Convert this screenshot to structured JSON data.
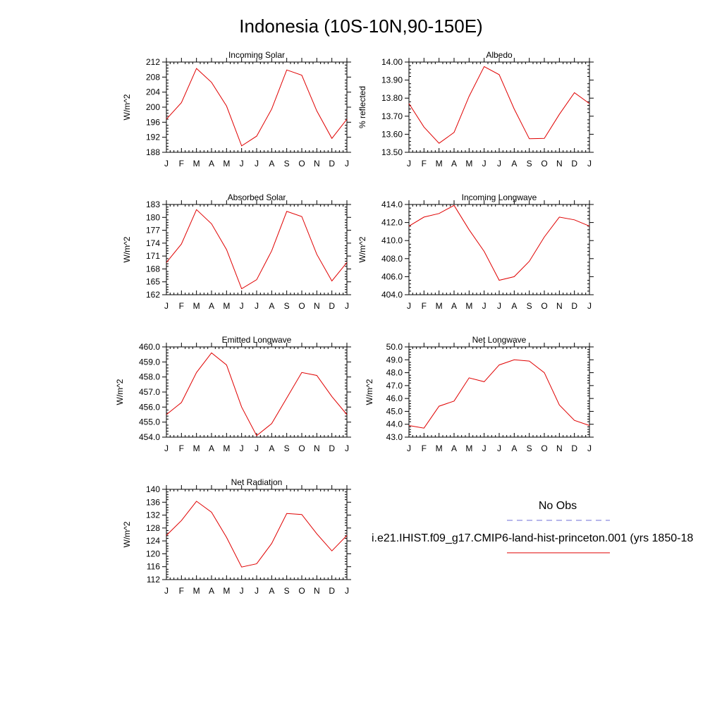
{
  "page_title": "Indonesia (10S-10N,90-150E)",
  "legend": {
    "obs_label": "No Obs",
    "model_label": "i.e21.IHIST.f09_g17.CMIP6-land-hist-princeton.001 (yrs 1850-18",
    "obs_color": "#6f6fd8",
    "model_color": "#e00000"
  },
  "chart_data": [
    {
      "type": "line",
      "title": "Incoming Solar",
      "ylabel": "W/m^2",
      "categories": [
        "J",
        "F",
        "M",
        "A",
        "M",
        "J",
        "J",
        "A",
        "S",
        "O",
        "N",
        "D",
        "J"
      ],
      "ylim": [
        188,
        212
      ],
      "yticks": [
        "188",
        "192",
        "196",
        "200",
        "204",
        "208",
        "212"
      ],
      "series": [
        {
          "color": "#e00000",
          "values": [
            196.8,
            201.2,
            210.3,
            206.6,
            200.3,
            189.7,
            192.3,
            199.5,
            209.9,
            208.5,
            199.0,
            191.7,
            196.8
          ]
        }
      ]
    },
    {
      "type": "line",
      "title": "Albedo",
      "ylabel": "% reflected",
      "categories": [
        "J",
        "F",
        "M",
        "A",
        "M",
        "J",
        "J",
        "A",
        "S",
        "O",
        "N",
        "D",
        "J"
      ],
      "ylim": [
        13.5,
        14.0
      ],
      "yticks": [
        "13.50",
        "13.60",
        "13.70",
        "13.80",
        "13.90",
        "14.00"
      ],
      "series": [
        {
          "color": "#e00000",
          "values": [
            13.77,
            13.64,
            13.55,
            13.61,
            13.81,
            13.975,
            13.93,
            13.74,
            13.575,
            13.577,
            13.71,
            13.83,
            13.77
          ]
        }
      ]
    },
    {
      "type": "line",
      "title": "Absorbed Solar",
      "ylabel": "W/m^2",
      "categories": [
        "J",
        "F",
        "M",
        "A",
        "M",
        "J",
        "J",
        "A",
        "S",
        "O",
        "N",
        "D",
        "J"
      ],
      "ylim": [
        162,
        183
      ],
      "yticks": [
        "162",
        "165",
        "168",
        "171",
        "174",
        "177",
        "180",
        "183"
      ],
      "series": [
        {
          "color": "#e00000",
          "values": [
            169.5,
            173.8,
            181.8,
            178.5,
            172.5,
            163.4,
            165.5,
            172.2,
            181.4,
            180.2,
            171.4,
            165.2,
            169.5
          ]
        }
      ]
    },
    {
      "type": "line",
      "title": "Incoming Longwave",
      "ylabel": "W/m^2",
      "categories": [
        "J",
        "F",
        "M",
        "A",
        "M",
        "J",
        "J",
        "A",
        "S",
        "O",
        "N",
        "D",
        "J"
      ],
      "ylim": [
        404.0,
        414.0
      ],
      "yticks": [
        "404.0",
        "406.0",
        "408.0",
        "410.0",
        "412.0",
        "414.0"
      ],
      "series": [
        {
          "color": "#e00000",
          "values": [
            411.6,
            412.6,
            413.0,
            413.9,
            411.2,
            408.8,
            405.6,
            406.0,
            407.7,
            410.4,
            412.6,
            412.3,
            411.6
          ]
        }
      ]
    },
    {
      "type": "line",
      "title": "Emitted Longwave",
      "ylabel": "W/m^2",
      "categories": [
        "J",
        "F",
        "M",
        "A",
        "M",
        "J",
        "J",
        "A",
        "S",
        "O",
        "N",
        "D",
        "J"
      ],
      "ylim": [
        454.0,
        460.0
      ],
      "yticks": [
        "454.0",
        "455.0",
        "456.0",
        "457.0",
        "458.0",
        "459.0",
        "460.0"
      ],
      "series": [
        {
          "color": "#e00000",
          "values": [
            455.5,
            456.3,
            458.3,
            459.6,
            458.8,
            456.0,
            454.1,
            454.9,
            456.6,
            458.3,
            458.1,
            456.7,
            455.5
          ]
        }
      ]
    },
    {
      "type": "line",
      "title": "Net Longwave",
      "ylabel": "W/m^2",
      "categories": [
        "J",
        "F",
        "M",
        "A",
        "M",
        "J",
        "J",
        "A",
        "S",
        "O",
        "N",
        "D",
        "J"
      ],
      "ylim": [
        43.0,
        50.0
      ],
      "yticks": [
        "43.0",
        "44.0",
        "45.0",
        "46.0",
        "47.0",
        "48.0",
        "49.0",
        "50.0"
      ],
      "series": [
        {
          "color": "#e00000",
          "values": [
            43.9,
            43.7,
            45.4,
            45.8,
            47.6,
            47.3,
            48.6,
            49.0,
            48.9,
            48.0,
            45.5,
            44.3,
            43.9
          ]
        }
      ]
    },
    {
      "type": "line",
      "title": "Net Radiation",
      "ylabel": "W/m^2",
      "categories": [
        "J",
        "F",
        "M",
        "A",
        "M",
        "J",
        "J",
        "A",
        "S",
        "O",
        "N",
        "D",
        "J"
      ],
      "ylim": [
        112,
        140
      ],
      "yticks": [
        "112",
        "116",
        "120",
        "124",
        "128",
        "132",
        "136",
        "140"
      ],
      "series": [
        {
          "color": "#e00000",
          "values": [
            125.7,
            130.3,
            136.3,
            132.9,
            125.1,
            115.9,
            116.9,
            123.2,
            132.5,
            132.2,
            126.2,
            120.9,
            125.7
          ]
        }
      ]
    }
  ]
}
